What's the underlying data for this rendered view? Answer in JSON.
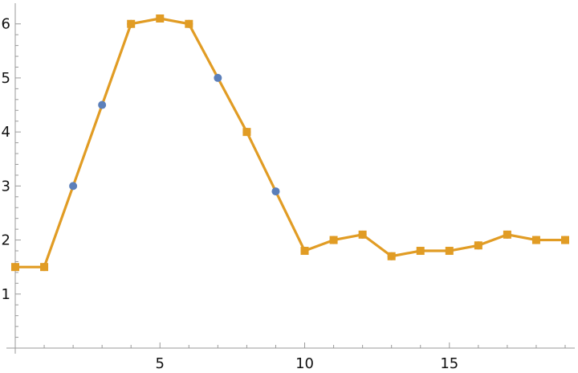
{
  "chart_data": {
    "type": "line",
    "title": "",
    "xlabel": "",
    "ylabel": "",
    "xlim": [
      0,
      19
    ],
    "ylim": [
      0,
      6.1
    ],
    "x_ticks": [
      5,
      10,
      15
    ],
    "x_tick_labels": [
      "5",
      "10",
      "15"
    ],
    "y_ticks": [
      1,
      2,
      3,
      4,
      5,
      6
    ],
    "y_tick_labels": [
      "1",
      "2",
      "3",
      "4",
      "5",
      "6"
    ],
    "grid": false,
    "series": [
      {
        "color": "#5b7fba",
        "marker": "circle",
        "x": [
          0,
          1,
          2,
          3,
          4,
          5,
          6,
          7,
          8,
          9,
          10,
          11,
          12,
          13,
          14,
          15,
          16,
          17,
          18,
          19
        ],
        "values": [
          1.5,
          1.5,
          3.0,
          4.5,
          6.0,
          6.1,
          6.0,
          5.0,
          4.0,
          2.9,
          1.8,
          2.0,
          2.1,
          1.7,
          1.8,
          1.8,
          1.9,
          2.1,
          2.0,
          2.0
        ]
      },
      {
        "color": "#e19c24",
        "marker": "square",
        "x": [
          0,
          1,
          4,
          5,
          6,
          8,
          10,
          11,
          12,
          13,
          14,
          15,
          16,
          17,
          18,
          19
        ],
        "values": [
          1.5,
          1.5,
          6.0,
          6.1,
          6.0,
          4.0,
          1.8,
          2.0,
          2.1,
          1.7,
          1.8,
          1.8,
          1.9,
          2.1,
          2.0,
          2.0
        ]
      }
    ],
    "line_series": {
      "color": "#e19c24",
      "x": [
        0,
        1,
        2,
        3,
        4,
        5,
        6,
        7,
        8,
        9,
        10,
        11,
        12,
        13,
        14,
        15,
        16,
        17,
        18,
        19
      ],
      "values": [
        1.5,
        1.5,
        3.0,
        4.5,
        6.0,
        6.1,
        6.0,
        5.0,
        4.0,
        2.9,
        1.8,
        2.0,
        2.1,
        1.7,
        1.8,
        1.8,
        1.9,
        2.1,
        2.0,
        2.0
      ]
    }
  }
}
